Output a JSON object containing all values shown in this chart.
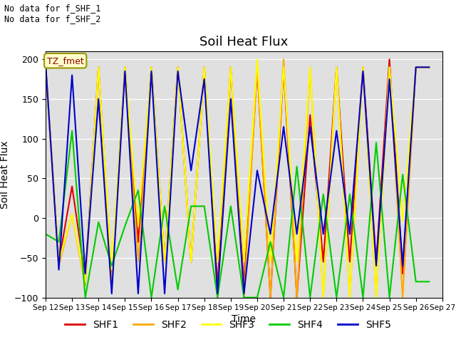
{
  "title": "Soil Heat Flux",
  "xlabel": "Time",
  "ylabel": "Soil Heat Flux",
  "annotation_text": "No data for f_SHF_1\nNo data for f_SHF_2",
  "tz_label": "TZ_fmet",
  "ylim": [
    -100,
    210
  ],
  "yticks": [
    -100,
    -50,
    0,
    50,
    100,
    150,
    200
  ],
  "bg_color": "#e0e0e0",
  "colors": {
    "SHF1": "#dd0000",
    "SHF2": "#ffaa00",
    "SHF3": "#ffff00",
    "SHF4": "#00cc00",
    "SHF5": "#0000cc"
  },
  "series": {
    "SHF1": [
      [
        12.0,
        190
      ],
      [
        12.5,
        -55
      ],
      [
        13.0,
        40
      ],
      [
        13.5,
        -75
      ],
      [
        14.0,
        190
      ],
      [
        14.5,
        -75
      ],
      [
        15.0,
        190
      ],
      [
        15.5,
        -30
      ],
      [
        16.0,
        190
      ],
      [
        16.5,
        -55
      ],
      [
        17.0,
        190
      ],
      [
        17.5,
        -55
      ],
      [
        18.0,
        190
      ],
      [
        18.5,
        -85
      ],
      [
        19.0,
        190
      ],
      [
        19.5,
        -85
      ],
      [
        20.0,
        190
      ],
      [
        20.5,
        -100
      ],
      [
        21.0,
        190
      ],
      [
        21.5,
        -100
      ],
      [
        22.0,
        130
      ],
      [
        22.5,
        -55
      ],
      [
        23.0,
        190
      ],
      [
        23.5,
        -55
      ],
      [
        24.0,
        190
      ],
      [
        24.5,
        -55
      ],
      [
        25.0,
        200
      ],
      [
        25.5,
        -70
      ],
      [
        26.0,
        190
      ],
      [
        26.5,
        190
      ]
    ],
    "SHF2": [
      [
        12.0,
        190
      ],
      [
        12.5,
        -60
      ],
      [
        13.0,
        5
      ],
      [
        13.5,
        -85
      ],
      [
        14.0,
        190
      ],
      [
        14.5,
        -85
      ],
      [
        15.0,
        190
      ],
      [
        15.5,
        -55
      ],
      [
        16.0,
        190
      ],
      [
        16.5,
        -55
      ],
      [
        17.0,
        190
      ],
      [
        17.5,
        -55
      ],
      [
        18.0,
        190
      ],
      [
        18.5,
        -100
      ],
      [
        19.0,
        190
      ],
      [
        19.5,
        -100
      ],
      [
        20.0,
        190
      ],
      [
        20.5,
        -100
      ],
      [
        21.0,
        200
      ],
      [
        21.5,
        -100
      ],
      [
        22.0,
        190
      ],
      [
        22.5,
        -100
      ],
      [
        23.0,
        190
      ],
      [
        23.5,
        -100
      ],
      [
        24.0,
        190
      ],
      [
        24.5,
        -100
      ],
      [
        25.0,
        190
      ],
      [
        25.5,
        -100
      ],
      [
        26.0,
        190
      ],
      [
        26.5,
        190
      ]
    ],
    "SHF3": [
      [
        12.0,
        190
      ],
      [
        12.5,
        -55
      ],
      [
        13.0,
        5
      ],
      [
        13.5,
        -80
      ],
      [
        14.0,
        190
      ],
      [
        14.5,
        -65
      ],
      [
        15.0,
        190
      ],
      [
        15.5,
        -10
      ],
      [
        16.0,
        190
      ],
      [
        16.5,
        -55
      ],
      [
        17.0,
        190
      ],
      [
        17.5,
        -55
      ],
      [
        18.0,
        190
      ],
      [
        18.5,
        -55
      ],
      [
        19.0,
        190
      ],
      [
        19.5,
        -55
      ],
      [
        20.0,
        200
      ],
      [
        20.5,
        -55
      ],
      [
        21.0,
        190
      ],
      [
        21.5,
        -55
      ],
      [
        22.0,
        190
      ],
      [
        22.5,
        -100
      ],
      [
        23.0,
        190
      ],
      [
        23.5,
        -100
      ],
      [
        24.0,
        190
      ],
      [
        24.5,
        -100
      ],
      [
        25.0,
        190
      ],
      [
        25.5,
        -5
      ],
      [
        26.0,
        190
      ],
      [
        26.5,
        190
      ]
    ],
    "SHF4": [
      [
        12.0,
        -20
      ],
      [
        12.5,
        -30
      ],
      [
        13.0,
        110
      ],
      [
        13.5,
        -100
      ],
      [
        14.0,
        -5
      ],
      [
        14.5,
        -60
      ],
      [
        15.0,
        -10
      ],
      [
        15.5,
        35
      ],
      [
        16.0,
        -100
      ],
      [
        16.5,
        15
      ],
      [
        17.0,
        -90
      ],
      [
        17.5,
        15
      ],
      [
        18.0,
        15
      ],
      [
        18.5,
        -100
      ],
      [
        19.0,
        15
      ],
      [
        19.5,
        -100
      ],
      [
        20.0,
        -100
      ],
      [
        20.5,
        -30
      ],
      [
        21.0,
        -100
      ],
      [
        21.5,
        65
      ],
      [
        22.0,
        -100
      ],
      [
        22.5,
        30
      ],
      [
        23.0,
        -100
      ],
      [
        23.5,
        30
      ],
      [
        24.0,
        -100
      ],
      [
        24.5,
        95
      ],
      [
        25.0,
        -100
      ],
      [
        25.5,
        55
      ],
      [
        26.0,
        -80
      ],
      [
        26.5,
        -80
      ]
    ],
    "SHF5": [
      [
        12.0,
        195
      ],
      [
        12.5,
        -65
      ],
      [
        13.0,
        180
      ],
      [
        13.5,
        -70
      ],
      [
        14.0,
        150
      ],
      [
        14.5,
        -95
      ],
      [
        15.0,
        185
      ],
      [
        15.5,
        -95
      ],
      [
        16.0,
        185
      ],
      [
        16.5,
        -95
      ],
      [
        17.0,
        185
      ],
      [
        17.5,
        60
      ],
      [
        18.0,
        175
      ],
      [
        18.5,
        -95
      ],
      [
        19.0,
        150
      ],
      [
        19.5,
        -95
      ],
      [
        20.0,
        60
      ],
      [
        20.5,
        -20
      ],
      [
        21.0,
        115
      ],
      [
        21.5,
        -20
      ],
      [
        22.0,
        115
      ],
      [
        22.5,
        -20
      ],
      [
        23.0,
        110
      ],
      [
        23.5,
        -20
      ],
      [
        24.0,
        185
      ],
      [
        24.5,
        -60
      ],
      [
        25.0,
        175
      ],
      [
        25.5,
        -60
      ],
      [
        26.0,
        190
      ],
      [
        26.5,
        190
      ]
    ]
  },
  "xtick_labels": [
    "Sep 12",
    "Sep 13",
    "Sep 14",
    "Sep 15",
    "Sep 16",
    "Sep 17",
    "Sep 18",
    "Sep 19",
    "Sep 20",
    "Sep 21",
    "Sep 22",
    "Sep 23",
    "Sep 24",
    "Sep 25",
    "Sep 26",
    "Sep 27"
  ],
  "xtick_positions": [
    12,
    13,
    14,
    15,
    16,
    17,
    18,
    19,
    20,
    21,
    22,
    23,
    24,
    25,
    26,
    27
  ]
}
